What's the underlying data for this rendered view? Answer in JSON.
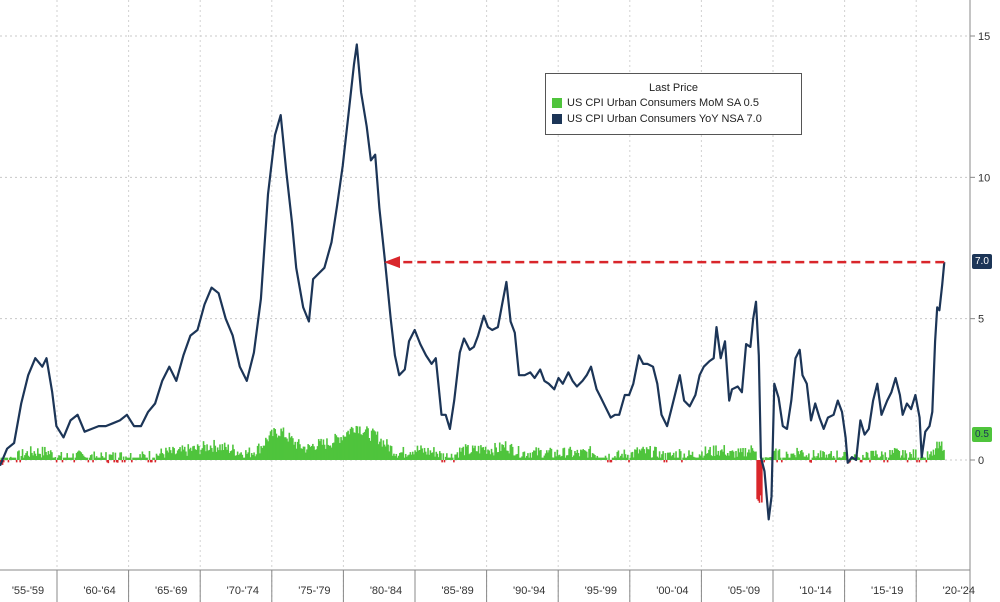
{
  "chart_data": {
    "type": "line",
    "x_start": 1955,
    "x_end": 2022,
    "ylim": [
      -5,
      16
    ],
    "y_ticks": [
      0,
      5,
      10,
      15
    ],
    "x_categories": [
      "'55-'59",
      "'60-'64",
      "'65-'69",
      "'70-'74",
      "'75-'79",
      "'80-'84",
      "'85-'89",
      "'90-'94",
      "'95-'99",
      "'00-'04",
      "'05-'09",
      "'10-'14",
      "'15-'19",
      "'20-'24"
    ],
    "legend": {
      "title": "Last Price",
      "entries": [
        "US CPI Urban Consumers MoM SA  0.5",
        "US CPI Urban Consumers YoY NSA 7.0"
      ]
    },
    "series": [
      {
        "name": "US CPI Urban Consumers YoY NSA",
        "color": "#1c3557",
        "last": "7.0",
        "points": [
          [
            1955.0,
            -0.2
          ],
          [
            1955.5,
            0.4
          ],
          [
            1956.0,
            0.6
          ],
          [
            1956.5,
            2.0
          ],
          [
            1957.0,
            3.0
          ],
          [
            1957.5,
            3.6
          ],
          [
            1958.0,
            3.3
          ],
          [
            1958.3,
            3.6
          ],
          [
            1958.7,
            2.4
          ],
          [
            1959.0,
            1.2
          ],
          [
            1959.5,
            0.8
          ],
          [
            1960.0,
            1.4
          ],
          [
            1960.5,
            1.6
          ],
          [
            1961.0,
            1.0
          ],
          [
            1961.5,
            1.1
          ],
          [
            1962.0,
            1.2
          ],
          [
            1962.5,
            1.2
          ],
          [
            1963.0,
            1.3
          ],
          [
            1963.5,
            1.4
          ],
          [
            1964.0,
            1.6
          ],
          [
            1964.5,
            1.2
          ],
          [
            1965.0,
            1.2
          ],
          [
            1965.5,
            1.7
          ],
          [
            1966.0,
            2.0
          ],
          [
            1966.5,
            2.8
          ],
          [
            1967.0,
            3.3
          ],
          [
            1967.5,
            2.8
          ],
          [
            1968.0,
            3.7
          ],
          [
            1968.5,
            4.4
          ],
          [
            1969.0,
            4.6
          ],
          [
            1969.5,
            5.5
          ],
          [
            1970.0,
            6.1
          ],
          [
            1970.5,
            5.9
          ],
          [
            1971.0,
            5.0
          ],
          [
            1971.5,
            4.4
          ],
          [
            1972.0,
            3.3
          ],
          [
            1972.5,
            2.8
          ],
          [
            1973.0,
            3.8
          ],
          [
            1973.5,
            5.7
          ],
          [
            1974.0,
            9.4
          ],
          [
            1974.5,
            11.5
          ],
          [
            1974.9,
            12.2
          ],
          [
            1975.3,
            10.2
          ],
          [
            1975.7,
            8.4
          ],
          [
            1976.0,
            6.8
          ],
          [
            1976.5,
            5.4
          ],
          [
            1976.9,
            4.9
          ],
          [
            1977.2,
            6.4
          ],
          [
            1977.6,
            6.6
          ],
          [
            1978.0,
            6.8
          ],
          [
            1978.5,
            7.7
          ],
          [
            1978.9,
            9.0
          ],
          [
            1979.3,
            10.4
          ],
          [
            1979.7,
            12.2
          ],
          [
            1980.1,
            14.0
          ],
          [
            1980.3,
            14.7
          ],
          [
            1980.6,
            13.0
          ],
          [
            1981.0,
            11.8
          ],
          [
            1981.3,
            10.6
          ],
          [
            1981.6,
            10.8
          ],
          [
            1981.9,
            8.9
          ],
          [
            1982.3,
            7.0
          ],
          [
            1982.7,
            5.0
          ],
          [
            1983.0,
            3.7
          ],
          [
            1983.3,
            3.0
          ],
          [
            1983.7,
            3.2
          ],
          [
            1984.0,
            4.2
          ],
          [
            1984.4,
            4.6
          ],
          [
            1984.8,
            4.1
          ],
          [
            1985.2,
            3.7
          ],
          [
            1985.6,
            3.4
          ],
          [
            1985.9,
            3.6
          ],
          [
            1986.3,
            1.6
          ],
          [
            1986.6,
            1.6
          ],
          [
            1986.9,
            1.1
          ],
          [
            1987.2,
            2.1
          ],
          [
            1987.6,
            3.8
          ],
          [
            1987.9,
            4.3
          ],
          [
            1988.3,
            3.9
          ],
          [
            1988.6,
            4.0
          ],
          [
            1988.9,
            4.4
          ],
          [
            1989.3,
            5.1
          ],
          [
            1989.6,
            4.7
          ],
          [
            1989.9,
            4.6
          ],
          [
            1990.3,
            4.7
          ],
          [
            1990.6,
            5.5
          ],
          [
            1990.9,
            6.3
          ],
          [
            1991.2,
            4.9
          ],
          [
            1991.5,
            4.5
          ],
          [
            1991.8,
            3.0
          ],
          [
            1992.2,
            3.0
          ],
          [
            1992.6,
            3.1
          ],
          [
            1992.9,
            2.9
          ],
          [
            1993.3,
            3.2
          ],
          [
            1993.6,
            2.8
          ],
          [
            1993.9,
            2.7
          ],
          [
            1994.3,
            2.5
          ],
          [
            1994.6,
            2.9
          ],
          [
            1994.9,
            2.7
          ],
          [
            1995.3,
            3.1
          ],
          [
            1995.6,
            2.8
          ],
          [
            1995.9,
            2.6
          ],
          [
            1996.3,
            2.8
          ],
          [
            1996.6,
            3.0
          ],
          [
            1996.9,
            3.3
          ],
          [
            1997.3,
            2.5
          ],
          [
            1997.6,
            2.2
          ],
          [
            1997.9,
            1.9
          ],
          [
            1998.3,
            1.5
          ],
          [
            1998.6,
            1.6
          ],
          [
            1998.9,
            1.6
          ],
          [
            1999.3,
            2.3
          ],
          [
            1999.6,
            2.3
          ],
          [
            1999.9,
            2.7
          ],
          [
            2000.3,
            3.7
          ],
          [
            2000.6,
            3.4
          ],
          [
            2000.9,
            3.4
          ],
          [
            2001.3,
            3.3
          ],
          [
            2001.6,
            2.7
          ],
          [
            2001.9,
            1.6
          ],
          [
            2002.3,
            1.2
          ],
          [
            2002.6,
            1.8
          ],
          [
            2002.9,
            2.4
          ],
          [
            2003.2,
            3.0
          ],
          [
            2003.5,
            2.1
          ],
          [
            2003.9,
            1.9
          ],
          [
            2004.3,
            2.3
          ],
          [
            2004.6,
            3.0
          ],
          [
            2004.9,
            3.3
          ],
          [
            2005.3,
            3.5
          ],
          [
            2005.6,
            3.6
          ],
          [
            2005.8,
            4.7
          ],
          [
            2006.1,
            3.6
          ],
          [
            2006.4,
            4.2
          ],
          [
            2006.7,
            2.1
          ],
          [
            2006.9,
            2.5
          ],
          [
            2007.3,
            2.6
          ],
          [
            2007.6,
            2.4
          ],
          [
            2007.9,
            4.1
          ],
          [
            2008.2,
            4.0
          ],
          [
            2008.4,
            5.0
          ],
          [
            2008.6,
            5.6
          ],
          [
            2008.8,
            3.7
          ],
          [
            2008.95,
            0.1
          ],
          [
            2009.2,
            -0.4
          ],
          [
            2009.5,
            -2.1
          ],
          [
            2009.7,
            -1.3
          ],
          [
            2009.9,
            2.7
          ],
          [
            2010.2,
            2.2
          ],
          [
            2010.5,
            1.2
          ],
          [
            2010.8,
            1.1
          ],
          [
            2011.1,
            2.1
          ],
          [
            2011.4,
            3.6
          ],
          [
            2011.7,
            3.9
          ],
          [
            2011.9,
            3.0
          ],
          [
            2012.2,
            2.7
          ],
          [
            2012.5,
            1.4
          ],
          [
            2012.8,
            2.0
          ],
          [
            2013.1,
            1.5
          ],
          [
            2013.4,
            1.1
          ],
          [
            2013.7,
            1.5
          ],
          [
            2014.1,
            1.6
          ],
          [
            2014.4,
            2.1
          ],
          [
            2014.7,
            1.7
          ],
          [
            2014.95,
            0.8
          ],
          [
            2015.1,
            -0.1
          ],
          [
            2015.4,
            0.1
          ],
          [
            2015.7,
            0.0
          ],
          [
            2016.0,
            1.4
          ],
          [
            2016.3,
            0.9
          ],
          [
            2016.6,
            1.1
          ],
          [
            2016.9,
            2.1
          ],
          [
            2017.2,
            2.7
          ],
          [
            2017.5,
            1.6
          ],
          [
            2017.9,
            2.1
          ],
          [
            2018.2,
            2.4
          ],
          [
            2018.5,
            2.9
          ],
          [
            2018.8,
            2.3
          ],
          [
            2019.0,
            1.6
          ],
          [
            2019.3,
            2.0
          ],
          [
            2019.6,
            1.8
          ],
          [
            2019.9,
            2.3
          ],
          [
            2020.2,
            1.5
          ],
          [
            2020.35,
            0.1
          ],
          [
            2020.6,
            1.0
          ],
          [
            2020.9,
            1.2
          ],
          [
            2021.1,
            1.7
          ],
          [
            2021.3,
            4.2
          ],
          [
            2021.45,
            5.4
          ],
          [
            2021.6,
            5.3
          ],
          [
            2021.8,
            6.2
          ],
          [
            2021.95,
            7.0
          ]
        ]
      },
      {
        "name": "US CPI Urban Consumers MoM SA",
        "color": "#4fc43c",
        "last": "0.5",
        "points": []
      }
    ]
  }
}
